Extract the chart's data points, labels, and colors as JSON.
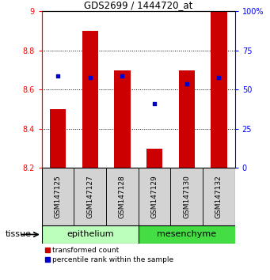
{
  "title": "GDS2699 / 1444720_at",
  "samples": [
    "GSM147125",
    "GSM147127",
    "GSM147128",
    "GSM147129",
    "GSM147130",
    "GSM147132"
  ],
  "red_values": [
    8.5,
    8.9,
    8.7,
    8.3,
    8.7,
    9.0
  ],
  "blue_values": [
    8.67,
    8.66,
    8.67,
    8.53,
    8.63,
    8.66
  ],
  "ylim_left": [
    8.2,
    9.0
  ],
  "ylim_right": [
    0,
    100
  ],
  "yticks_left": [
    8.2,
    8.4,
    8.6,
    8.8,
    9.0
  ],
  "ytick_labels_left": [
    "8.2",
    "8.4",
    "8.6",
    "8.8",
    "9"
  ],
  "yticks_right": [
    0,
    25,
    50,
    75,
    100
  ],
  "ytick_labels_right": [
    "0",
    "25",
    "50",
    "75",
    "100%"
  ],
  "bar_color": "#cc0000",
  "dot_color": "#0000cc",
  "bar_bottom": 8.2,
  "epithelium_color": "#bbffbb",
  "mesenchyme_color": "#44dd44",
  "bar_width": 0.5,
  "fig_width": 3.41,
  "fig_height": 3.54,
  "dpi": 100
}
